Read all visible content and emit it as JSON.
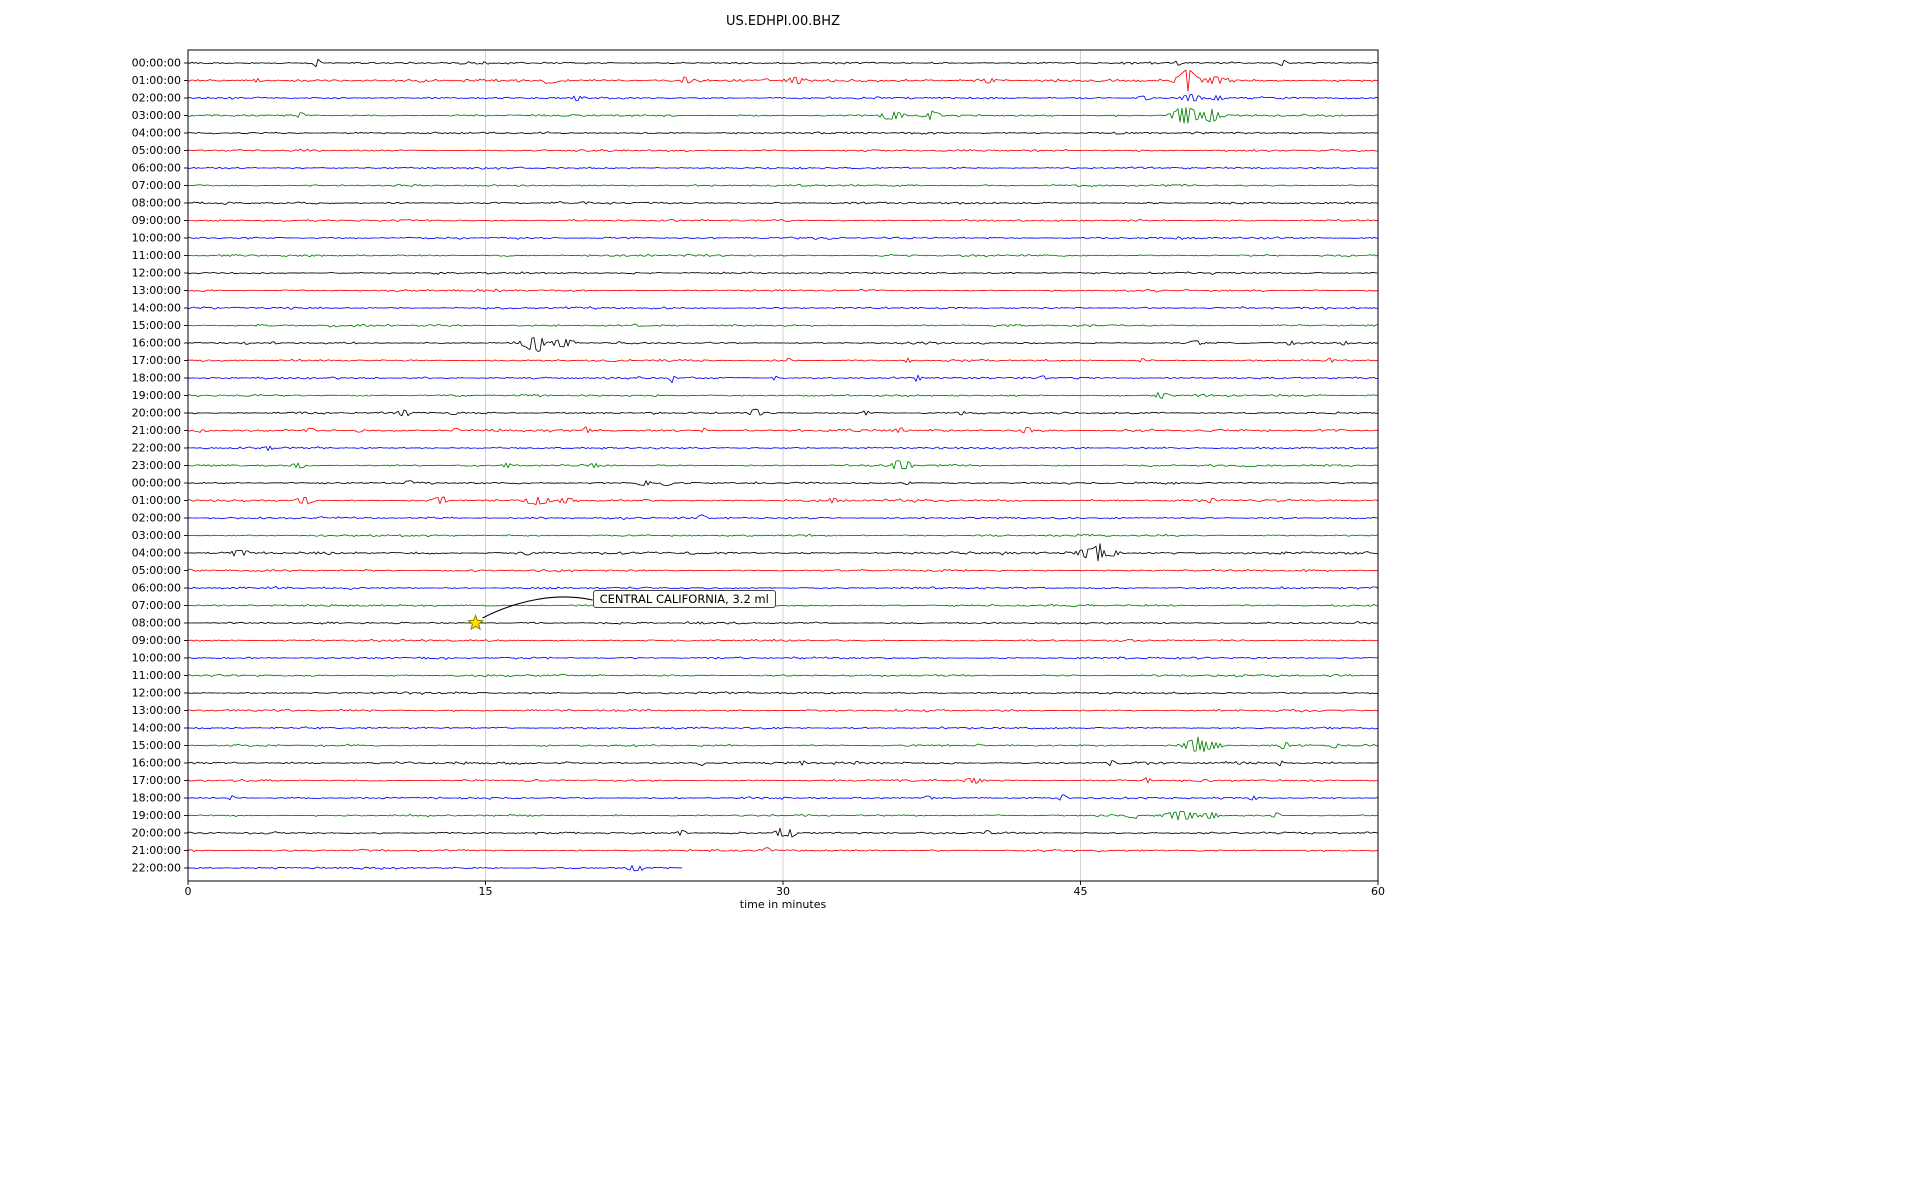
{
  "chart_data": {
    "type": "line",
    "subtype": "seismogram-dayplot",
    "title": "US.EDHPI.00.BHZ",
    "xlabel": "time in minutes",
    "xlim": [
      0,
      60
    ],
    "x_ticks": [
      0,
      15,
      30,
      45,
      60
    ],
    "grid": "vertical",
    "colors_cycle": [
      "#000000",
      "#ff0000",
      "#0000ff",
      "#008000"
    ],
    "annotation": {
      "text": "CENTRAL CALIFORNIA, 3.2 ml",
      "row": 32,
      "minute": 14.5,
      "star_color": "#ffdd00"
    },
    "rows": [
      {
        "label": "00:00:00",
        "color": "#000000",
        "events": [
          [
            6.5,
            6,
            0.12
          ],
          [
            49.9,
            2.5,
            0.15
          ],
          [
            55.2,
            4,
            0.15
          ]
        ]
      },
      {
        "label": "01:00:00",
        "color": "#ff0000",
        "base": 1.5,
        "events": [
          [
            3.5,
            2.5,
            0.15
          ],
          [
            18.3,
            3.5,
            0.25
          ],
          [
            25.1,
            3.5,
            0.15
          ],
          [
            30.7,
            3.5,
            0.2
          ],
          [
            40.4,
            3,
            0.2
          ],
          [
            50.4,
            16,
            0.3
          ],
          [
            51.8,
            5,
            0.3
          ]
        ]
      },
      {
        "label": "02:00:00",
        "color": "#0000ff",
        "events": [
          [
            19.6,
            3.5,
            0.15
          ],
          [
            48.2,
            2.5,
            0.25
          ],
          [
            50.6,
            4,
            0.35
          ],
          [
            51.9,
            3,
            0.2
          ]
        ]
      },
      {
        "label": "03:00:00",
        "color": "#008000",
        "events": [
          [
            5.7,
            3.5,
            0.15
          ],
          [
            35.5,
            5,
            0.4
          ],
          [
            37.6,
            4,
            0.25
          ],
          [
            50.3,
            12,
            0.45
          ],
          [
            51.6,
            9,
            0.25
          ]
        ]
      },
      {
        "label": "04:00:00",
        "color": "#000000",
        "events": []
      },
      {
        "label": "05:00:00",
        "color": "#ff0000",
        "events": []
      },
      {
        "label": "06:00:00",
        "color": "#0000ff",
        "events": []
      },
      {
        "label": "07:00:00",
        "color": "#008000",
        "events": []
      },
      {
        "label": "08:00:00",
        "color": "#000000",
        "events": []
      },
      {
        "label": "09:00:00",
        "color": "#ff0000",
        "events": []
      },
      {
        "label": "10:00:00",
        "color": "#0000ff",
        "events": []
      },
      {
        "label": "11:00:00",
        "color": "#008000",
        "events": []
      },
      {
        "label": "12:00:00",
        "color": "#000000",
        "events": []
      },
      {
        "label": "13:00:00",
        "color": "#ff0000",
        "events": []
      },
      {
        "label": "14:00:00",
        "color": "#0000ff",
        "events": []
      },
      {
        "label": "15:00:00",
        "color": "#008000",
        "events": []
      },
      {
        "label": "16:00:00",
        "color": "#000000",
        "events": [
          [
            17.3,
            7,
            0.35
          ],
          [
            17.7,
            9,
            0.12
          ],
          [
            18.9,
            5,
            0.35
          ],
          [
            50.8,
            2.5,
            0.25
          ],
          [
            55.6,
            2,
            0.2
          ],
          [
            58.3,
            2.5,
            0.15
          ]
        ]
      },
      {
        "label": "17:00:00",
        "color": "#ff0000",
        "events": [
          [
            30.3,
            2.5,
            0.12
          ],
          [
            36.3,
            3,
            0.12
          ],
          [
            48.1,
            2.5,
            0.12
          ],
          [
            57.6,
            2,
            0.12
          ]
        ]
      },
      {
        "label": "18:00:00",
        "color": "#0000ff",
        "events": [
          [
            24.4,
            3.5,
            0.1
          ],
          [
            29.6,
            2.5,
            0.1
          ],
          [
            36.8,
            3.5,
            0.1
          ],
          [
            43.1,
            3,
            0.12
          ]
        ]
      },
      {
        "label": "19:00:00",
        "color": "#008000",
        "events": [
          [
            49.1,
            2.5,
            0.3
          ]
        ]
      },
      {
        "label": "20:00:00",
        "color": "#000000",
        "events": [
          [
            10.9,
            2.5,
            0.2
          ],
          [
            13.4,
            2,
            0.15
          ],
          [
            28.6,
            5,
            0.18
          ],
          [
            34.2,
            2.5,
            0.15
          ],
          [
            39,
            2,
            0.15
          ]
        ]
      },
      {
        "label": "21:00:00",
        "color": "#ff0000",
        "base": 1.3,
        "events": [
          [
            6.2,
            2.5,
            0.15
          ],
          [
            8.6,
            2,
            0.12
          ],
          [
            13.5,
            2.5,
            0.15
          ],
          [
            20.1,
            2.5,
            0.15
          ],
          [
            26,
            3,
            0.12
          ],
          [
            35.9,
            2.5,
            0.12
          ],
          [
            42.3,
            4,
            0.2
          ]
        ]
      },
      {
        "label": "22:00:00",
        "color": "#0000ff",
        "events": [
          [
            4.1,
            2,
            0.2
          ]
        ]
      },
      {
        "label": "23:00:00",
        "color": "#008000",
        "events": [
          [
            5.6,
            3,
            0.25
          ],
          [
            16.1,
            2.5,
            0.15
          ],
          [
            20.5,
            2.5,
            0.15
          ],
          [
            35.8,
            7,
            0.2
          ],
          [
            36.3,
            5,
            0.12
          ]
        ]
      },
      {
        "label": "00:00:00",
        "color": "#000000",
        "events": [
          [
            11.2,
            2,
            0.15
          ],
          [
            23,
            3.5,
            0.25
          ],
          [
            24.1,
            3.5,
            0.2
          ],
          [
            36.3,
            2,
            0.15
          ]
        ]
      },
      {
        "label": "01:00:00",
        "color": "#ff0000",
        "base": 1.2,
        "events": [
          [
            5.9,
            4.5,
            0.3
          ],
          [
            12.7,
            4,
            0.25
          ],
          [
            17.6,
            4,
            0.4
          ],
          [
            19.1,
            2.5,
            0.25
          ],
          [
            32.5,
            3,
            0.15
          ],
          [
            51.6,
            2.5,
            0.15
          ]
        ]
      },
      {
        "label": "02:00:00",
        "color": "#0000ff",
        "events": [
          [
            25.9,
            4,
            0.1
          ]
        ]
      },
      {
        "label": "03:00:00",
        "color": "#008000",
        "events": []
      },
      {
        "label": "04:00:00",
        "color": "#000000",
        "base": 1.3,
        "events": [
          [
            2.6,
            2.5,
            0.35
          ],
          [
            17.1,
            2,
            0.15
          ],
          [
            45.4,
            5,
            0.4
          ],
          [
            45.9,
            9,
            0.15
          ],
          [
            46.6,
            4,
            0.25
          ]
        ]
      },
      {
        "label": "05:00:00",
        "color": "#ff0000",
        "events": []
      },
      {
        "label": "06:00:00",
        "color": "#0000ff",
        "events": []
      },
      {
        "label": "07:00:00",
        "color": "#008000",
        "events": []
      },
      {
        "label": "08:00:00",
        "color": "#000000",
        "events": []
      },
      {
        "label": "09:00:00",
        "color": "#ff0000",
        "events": []
      },
      {
        "label": "10:00:00",
        "color": "#0000ff",
        "events": []
      },
      {
        "label": "11:00:00",
        "color": "#008000",
        "events": []
      },
      {
        "label": "12:00:00",
        "color": "#000000",
        "events": []
      },
      {
        "label": "13:00:00",
        "color": "#ff0000",
        "events": []
      },
      {
        "label": "14:00:00",
        "color": "#0000ff",
        "events": []
      },
      {
        "label": "15:00:00",
        "color": "#008000",
        "events": [
          [
            50.7,
            8,
            0.35
          ],
          [
            51.6,
            5,
            0.35
          ],
          [
            55.3,
            3.5,
            0.15
          ],
          [
            57.8,
            3,
            0.15
          ]
        ]
      },
      {
        "label": "16:00:00",
        "color": "#000000",
        "base": 1.2,
        "events": [
          [
            25.9,
            2.5,
            0.12
          ],
          [
            31,
            3,
            0.1
          ],
          [
            46.6,
            2.5,
            0.12
          ],
          [
            55.1,
            2.5,
            0.12
          ]
        ]
      },
      {
        "label": "17:00:00",
        "color": "#ff0000",
        "events": [
          [
            39.6,
            3,
            0.35
          ],
          [
            48.4,
            3,
            0.15
          ]
        ]
      },
      {
        "label": "18:00:00",
        "color": "#0000ff",
        "events": [
          [
            2.2,
            3,
            0.12
          ],
          [
            37.3,
            2.5,
            0.12
          ],
          [
            44.1,
            3.5,
            0.15
          ],
          [
            53.7,
            2.5,
            0.15
          ]
        ]
      },
      {
        "label": "19:00:00",
        "color": "#008000",
        "events": [
          [
            47.6,
            2.5,
            0.2
          ],
          [
            50.1,
            5,
            0.5
          ],
          [
            51.6,
            4,
            0.25
          ],
          [
            54.9,
            3.5,
            0.12
          ]
        ]
      },
      {
        "label": "20:00:00",
        "color": "#000000",
        "events": [
          [
            24.9,
            3.5,
            0.15
          ],
          [
            29.9,
            5,
            0.25
          ],
          [
            30.5,
            4,
            0.15
          ],
          [
            40.3,
            3,
            0.12
          ]
        ]
      },
      {
        "label": "21:00:00",
        "color": "#ff0000",
        "events": [
          [
            29.2,
            3.5,
            0.1
          ]
        ]
      },
      {
        "label": "22:00:00",
        "color": "#0000ff",
        "end": 25,
        "events": [
          [
            22.5,
            3.5,
            0.25
          ]
        ]
      }
    ]
  }
}
